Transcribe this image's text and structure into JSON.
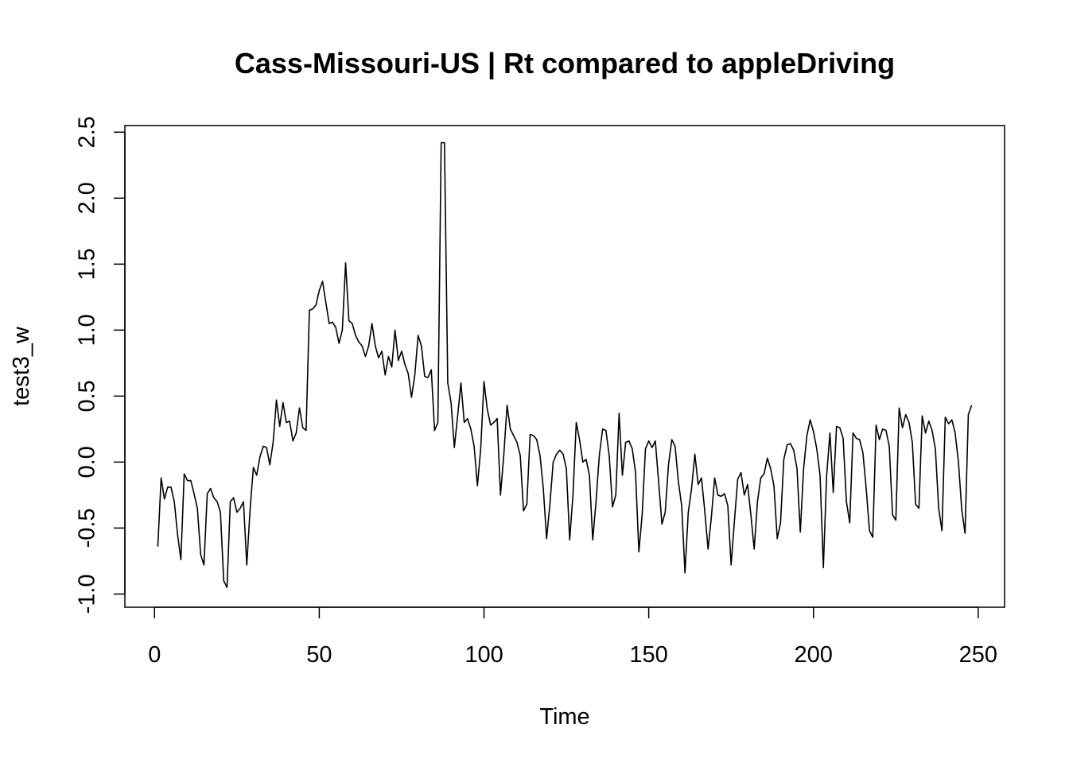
{
  "chart_data": {
    "type": "line",
    "title": "Cass-Missouri-US | Rt compared to appleDriving",
    "xlabel": "Time",
    "ylabel": "test3_w",
    "xlim": [
      -9,
      258
    ],
    "ylim": [
      -1.1,
      2.55
    ],
    "x_ticks": [
      {
        "value": 0,
        "label": "0"
      },
      {
        "value": 50,
        "label": "50"
      },
      {
        "value": 100,
        "label": "100"
      },
      {
        "value": 150,
        "label": "150"
      },
      {
        "value": 200,
        "label": "200"
      },
      {
        "value": 250,
        "label": "250"
      }
    ],
    "y_ticks": [
      {
        "value": -1.0,
        "label": "-1.0"
      },
      {
        "value": -0.5,
        "label": "-0.5"
      },
      {
        "value": 0.0,
        "label": "0.0"
      },
      {
        "value": 0.5,
        "label": "0.5"
      },
      {
        "value": 1.0,
        "label": "1.0"
      },
      {
        "value": 1.5,
        "label": "1.5"
      },
      {
        "value": 2.0,
        "label": "2.0"
      },
      {
        "value": 2.5,
        "label": "2.5"
      }
    ],
    "grid": false,
    "line_color": "#000000",
    "series": [
      {
        "x_start": 1,
        "values": [
          -0.64,
          -0.12,
          -0.28,
          -0.19,
          -0.19,
          -0.3,
          -0.55,
          -0.74,
          -0.09,
          -0.14,
          -0.14,
          -0.24,
          -0.35,
          -0.7,
          -0.78,
          -0.24,
          -0.2,
          -0.27,
          -0.3,
          -0.38,
          -0.9,
          -0.95,
          -0.3,
          -0.27,
          -0.38,
          -0.35,
          -0.3,
          -0.78,
          -0.36,
          -0.04,
          -0.1,
          0.04,
          0.12,
          0.11,
          -0.02,
          0.15,
          0.47,
          0.27,
          0.45,
          0.3,
          0.31,
          0.16,
          0.22,
          0.41,
          0.26,
          0.24,
          1.15,
          1.16,
          1.19,
          1.3,
          1.37,
          1.21,
          1.05,
          1.06,
          1.02,
          0.9,
          1.0,
          1.51,
          1.07,
          1.05,
          0.96,
          0.91,
          0.88,
          0.8,
          0.88,
          1.05,
          0.88,
          0.79,
          0.84,
          0.66,
          0.8,
          0.72,
          1.0,
          0.77,
          0.84,
          0.74,
          0.67,
          0.49,
          0.66,
          0.96,
          0.88,
          0.65,
          0.64,
          0.7,
          0.24,
          0.3,
          2.42,
          2.42,
          0.6,
          0.45,
          0.11,
          0.35,
          0.6,
          0.3,
          0.33,
          0.25,
          0.12,
          -0.18,
          0.1,
          0.61,
          0.4,
          0.28,
          0.3,
          0.33,
          -0.25,
          0.05,
          0.43,
          0.25,
          0.2,
          0.15,
          0.05,
          -0.37,
          -0.32,
          0.21,
          0.2,
          0.17,
          0.05,
          -0.2,
          -0.58,
          -0.32,
          0.0,
          0.06,
          0.09,
          0.06,
          -0.05,
          -0.59,
          -0.25,
          0.3,
          0.17,
          0.0,
          0.02,
          -0.1,
          -0.59,
          -0.3,
          0.05,
          0.25,
          0.24,
          0.05,
          -0.34,
          -0.25,
          0.37,
          -0.1,
          0.15,
          0.16,
          0.1,
          -0.08,
          -0.68,
          -0.4,
          0.1,
          0.16,
          0.11,
          0.16,
          -0.15,
          -0.47,
          -0.38,
          -0.02,
          0.17,
          0.12,
          -0.15,
          -0.33,
          -0.84,
          -0.38,
          -0.2,
          0.06,
          -0.17,
          -0.12,
          -0.37,
          -0.66,
          -0.42,
          -0.12,
          -0.25,
          -0.26,
          -0.24,
          -0.33,
          -0.78,
          -0.45,
          -0.13,
          -0.08,
          -0.25,
          -0.17,
          -0.4,
          -0.66,
          -0.3,
          -0.12,
          -0.09,
          0.03,
          -0.05,
          -0.18,
          -0.58,
          -0.46,
          0.02,
          0.13,
          0.14,
          0.09,
          -0.05,
          -0.53,
          -0.05,
          0.2,
          0.32,
          0.23,
          0.1,
          -0.1,
          -0.8,
          -0.1,
          0.22,
          -0.23,
          0.27,
          0.26,
          0.18,
          -0.3,
          -0.46,
          0.22,
          0.18,
          0.17,
          0.07,
          -0.2,
          -0.52,
          -0.57,
          0.28,
          0.17,
          0.25,
          0.24,
          0.12,
          -0.4,
          -0.44,
          0.41,
          0.26,
          0.36,
          0.3,
          0.15,
          -0.32,
          -0.35,
          0.35,
          0.22,
          0.31,
          0.24,
          0.1,
          -0.35,
          -0.52,
          0.34,
          0.29,
          0.32,
          0.22,
          0.0,
          -0.36,
          -0.54,
          0.36,
          0.43
        ]
      }
    ]
  }
}
